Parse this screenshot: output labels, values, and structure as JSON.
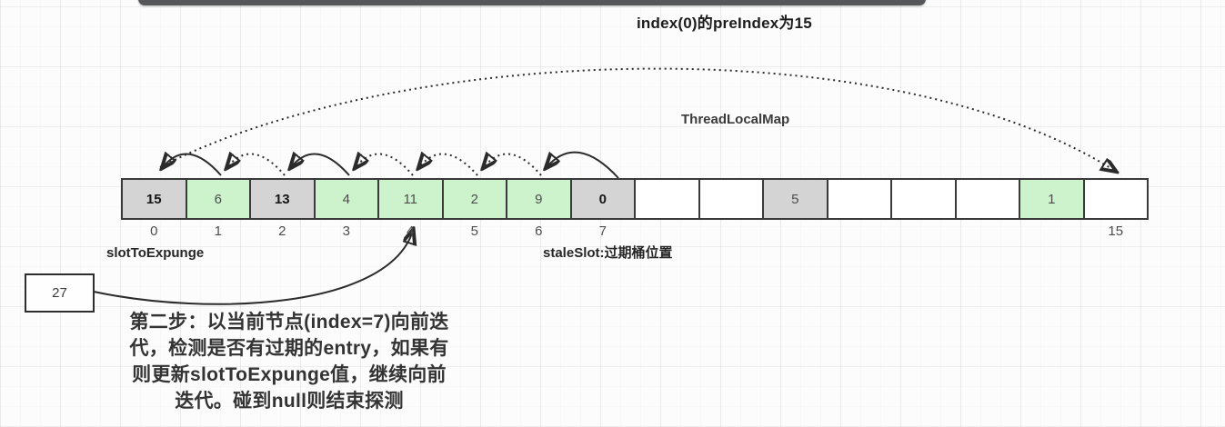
{
  "title": "index(0)的preIndex为15",
  "map_label": "ThreadLocalMap",
  "labels": {
    "slot_to_expunge": "slotToExpunge",
    "stale_slot": "staleSlot:过期桶位置"
  },
  "pointer_box": {
    "value": "27"
  },
  "note": {
    "lines": [
      "第二步：以当前节点(index=7)向前迭",
      "代，检测是否有过期的entry，如果有",
      "则更新slotToExpunge值，继续向前",
      "迭代。碰到null则结束探测"
    ]
  },
  "array": {
    "cells": [
      {
        "index": 0,
        "value": "15",
        "state": "stale",
        "bold": true,
        "index_label": "0"
      },
      {
        "index": 1,
        "value": "6",
        "state": "valid",
        "bold": false,
        "index_label": "1"
      },
      {
        "index": 2,
        "value": "13",
        "state": "stale",
        "bold": true,
        "index_label": "2"
      },
      {
        "index": 3,
        "value": "4",
        "state": "valid",
        "bold": false,
        "index_label": "3"
      },
      {
        "index": 4,
        "value": "11",
        "state": "valid",
        "bold": false,
        "index_label": "4"
      },
      {
        "index": 5,
        "value": "2",
        "state": "valid",
        "bold": false,
        "index_label": "5"
      },
      {
        "index": 6,
        "value": "9",
        "state": "valid",
        "bold": false,
        "index_label": "6"
      },
      {
        "index": 7,
        "value": "0",
        "state": "stale",
        "bold": true,
        "index_label": "7"
      },
      {
        "index": 8,
        "value": "",
        "state": "empty",
        "bold": false,
        "index_label": ""
      },
      {
        "index": 9,
        "value": "",
        "state": "empty",
        "bold": false,
        "index_label": ""
      },
      {
        "index": 10,
        "value": "5",
        "state": "stale",
        "bold": false,
        "index_label": ""
      },
      {
        "index": 11,
        "value": "",
        "state": "empty",
        "bold": false,
        "index_label": ""
      },
      {
        "index": 12,
        "value": "",
        "state": "empty",
        "bold": false,
        "index_label": ""
      },
      {
        "index": 13,
        "value": "",
        "state": "empty",
        "bold": false,
        "index_label": ""
      },
      {
        "index": 14,
        "value": "1",
        "state": "valid",
        "bold": false,
        "index_label": ""
      },
      {
        "index": 15,
        "value": "",
        "state": "empty",
        "bold": false,
        "index_label": "15"
      }
    ]
  },
  "colors": {
    "stale_cell": "#d4d4d4",
    "valid_cell": "#cdf3cc",
    "empty_cell": "#ffffff",
    "cell_border": "#3a3a3a",
    "top_bar": "#56575a",
    "arrow": "#2b2b2b"
  }
}
